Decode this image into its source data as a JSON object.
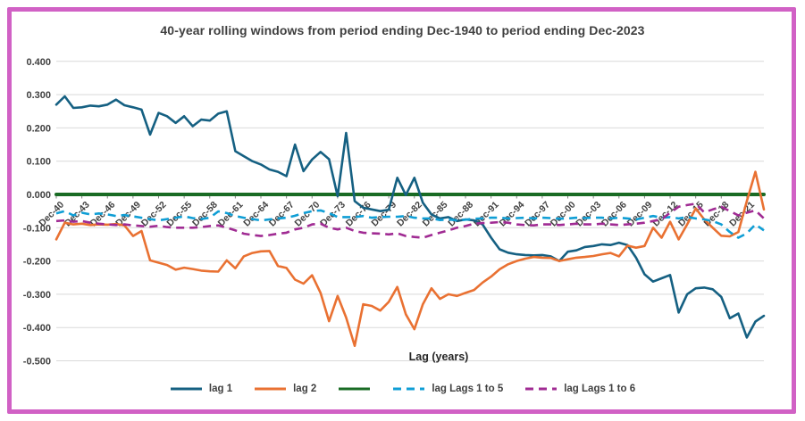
{
  "frame": {
    "border_color": "#d161c5"
  },
  "chart_data": {
    "type": "line",
    "title": "40-year rolling windows from period ending Dec-1940 to period ending Dec-2023",
    "xlabel": "Lag (years)",
    "x_start_year": 1940,
    "x_end_year": 2023,
    "x_tick_step_years": 3,
    "x_tick_labels": [
      "Dec-40",
      "Dec-43",
      "Dec-46",
      "Dec-49",
      "Dec-52",
      "Dec-55",
      "Dec-58",
      "Dec-61",
      "Dec-64",
      "Dec-67",
      "Dec-70",
      "Dec-73",
      "Dec-76",
      "Dec-79",
      "Dec-82",
      "Dec-85",
      "Dec-88",
      "Dec-91",
      "Dec-94",
      "Dec-97",
      "Dec-00",
      "Dec-03",
      "Dec-06",
      "Dec-09",
      "Dec-12",
      "Dec-15",
      "Dec-18",
      "Dec-21"
    ],
    "ytick_labels": [
      "0.400",
      "0.300",
      "0.200",
      "0.100",
      "0.000",
      "-0.100",
      "-0.200",
      "-0.300",
      "-0.400",
      "-0.500"
    ],
    "ytick_values": [
      0.4,
      0.3,
      0.2,
      0.1,
      0.0,
      -0.1,
      -0.2,
      -0.3,
      -0.4,
      -0.5
    ],
    "ylim": [
      -0.5,
      0.4
    ],
    "grid": "horizontal",
    "legend_position": "bottom",
    "series": [
      {
        "name": "lag 1",
        "color": "#156082",
        "style": "solid",
        "values": [
          0.27,
          0.295,
          0.26,
          0.262,
          0.267,
          0.265,
          0.27,
          0.285,
          0.268,
          0.262,
          0.255,
          0.18,
          0.245,
          0.235,
          0.215,
          0.235,
          0.205,
          0.225,
          0.222,
          0.243,
          0.25,
          0.13,
          0.115,
          0.1,
          0.09,
          0.075,
          0.068,
          0.055,
          0.15,
          0.07,
          0.105,
          0.128,
          0.106,
          -0.005,
          0.185,
          -0.02,
          -0.04,
          -0.045,
          -0.05,
          -0.046,
          0.05,
          -0.002,
          0.05,
          -0.025,
          -0.06,
          -0.072,
          -0.068,
          -0.08,
          -0.075,
          -0.078,
          -0.09,
          -0.13,
          -0.165,
          -0.175,
          -0.18,
          -0.182,
          -0.183,
          -0.182,
          -0.186,
          -0.2,
          -0.172,
          -0.168,
          -0.158,
          -0.155,
          -0.15,
          -0.152,
          -0.145,
          -0.152,
          -0.19,
          -0.24,
          -0.262,
          -0.252,
          -0.242,
          -0.355,
          -0.3,
          -0.282,
          -0.28,
          -0.285,
          -0.308,
          -0.372,
          -0.358,
          -0.43,
          -0.382,
          -0.365
        ]
      },
      {
        "name": "lag 2",
        "color": "#E97132",
        "style": "solid",
        "values": [
          -0.135,
          -0.085,
          -0.09,
          -0.088,
          -0.092,
          -0.09,
          -0.091,
          -0.089,
          -0.093,
          -0.125,
          -0.11,
          -0.198,
          -0.205,
          -0.212,
          -0.226,
          -0.22,
          -0.224,
          -0.229,
          -0.231,
          -0.232,
          -0.198,
          -0.222,
          -0.186,
          -0.176,
          -0.171,
          -0.17,
          -0.215,
          -0.221,
          -0.256,
          -0.268,
          -0.243,
          -0.296,
          -0.381,
          -0.305,
          -0.37,
          -0.455,
          -0.33,
          -0.335,
          -0.349,
          -0.323,
          -0.278,
          -0.36,
          -0.405,
          -0.33,
          -0.282,
          -0.314,
          -0.3,
          -0.305,
          -0.296,
          -0.287,
          -0.265,
          -0.247,
          -0.225,
          -0.21,
          -0.2,
          -0.193,
          -0.188,
          -0.19,
          -0.191,
          -0.2,
          -0.195,
          -0.19,
          -0.188,
          -0.185,
          -0.18,
          -0.176,
          -0.186,
          -0.154,
          -0.16,
          -0.155,
          -0.1,
          -0.13,
          -0.082,
          -0.135,
          -0.09,
          -0.042,
          -0.075,
          -0.1,
          -0.124,
          -0.126,
          -0.113,
          -0.02,
          0.068,
          -0.045
        ]
      },
      {
        "name": "",
        "color": "#196B24",
        "style": "solid",
        "constant": 0
      },
      {
        "name": "lag Lags 1 to 5",
        "color": "#0F9ED5",
        "style": "dashed",
        "values": [
          -0.057,
          -0.05,
          -0.063,
          -0.055,
          -0.06,
          -0.057,
          -0.06,
          -0.065,
          -0.062,
          -0.066,
          -0.07,
          -0.074,
          -0.078,
          -0.074,
          -0.07,
          -0.066,
          -0.071,
          -0.074,
          -0.07,
          -0.051,
          -0.056,
          -0.065,
          -0.07,
          -0.074,
          -0.078,
          -0.075,
          -0.072,
          -0.07,
          -0.064,
          -0.056,
          -0.05,
          -0.048,
          -0.056,
          -0.068,
          -0.068,
          -0.068,
          -0.065,
          -0.07,
          -0.068,
          -0.067,
          -0.067,
          -0.065,
          -0.07,
          -0.072,
          -0.072,
          -0.077,
          -0.075,
          -0.078,
          -0.076,
          -0.073,
          -0.072,
          -0.07,
          -0.07,
          -0.072,
          -0.071,
          -0.07,
          -0.072,
          -0.07,
          -0.071,
          -0.073,
          -0.072,
          -0.07,
          -0.071,
          -0.07,
          -0.07,
          -0.072,
          -0.07,
          -0.072,
          -0.075,
          -0.07,
          -0.065,
          -0.07,
          -0.068,
          -0.072,
          -0.068,
          -0.072,
          -0.075,
          -0.08,
          -0.09,
          -0.113,
          -0.13,
          -0.117,
          -0.09,
          -0.108
        ]
      },
      {
        "name": "lag Lags 1 to 6",
        "color": "#A02B93",
        "style": "dashed",
        "values": [
          -0.08,
          -0.078,
          -0.082,
          -0.08,
          -0.085,
          -0.088,
          -0.09,
          -0.092,
          -0.09,
          -0.093,
          -0.095,
          -0.097,
          -0.094,
          -0.098,
          -0.1,
          -0.1,
          -0.1,
          -0.098,
          -0.095,
          -0.093,
          -0.1,
          -0.108,
          -0.118,
          -0.122,
          -0.125,
          -0.122,
          -0.118,
          -0.115,
          -0.105,
          -0.1,
          -0.09,
          -0.088,
          -0.1,
          -0.105,
          -0.1,
          -0.11,
          -0.115,
          -0.117,
          -0.118,
          -0.12,
          -0.117,
          -0.125,
          -0.128,
          -0.13,
          -0.122,
          -0.115,
          -0.108,
          -0.1,
          -0.095,
          -0.088,
          -0.086,
          -0.085,
          -0.083,
          -0.085,
          -0.09,
          -0.092,
          -0.093,
          -0.09,
          -0.09,
          -0.092,
          -0.09,
          -0.088,
          -0.09,
          -0.09,
          -0.088,
          -0.09,
          -0.092,
          -0.09,
          -0.088,
          -0.085,
          -0.08,
          -0.075,
          -0.055,
          -0.037,
          -0.032,
          -0.028,
          -0.054,
          -0.045,
          -0.037,
          -0.05,
          -0.063,
          -0.055,
          -0.048,
          -0.072
        ]
      }
    ]
  }
}
